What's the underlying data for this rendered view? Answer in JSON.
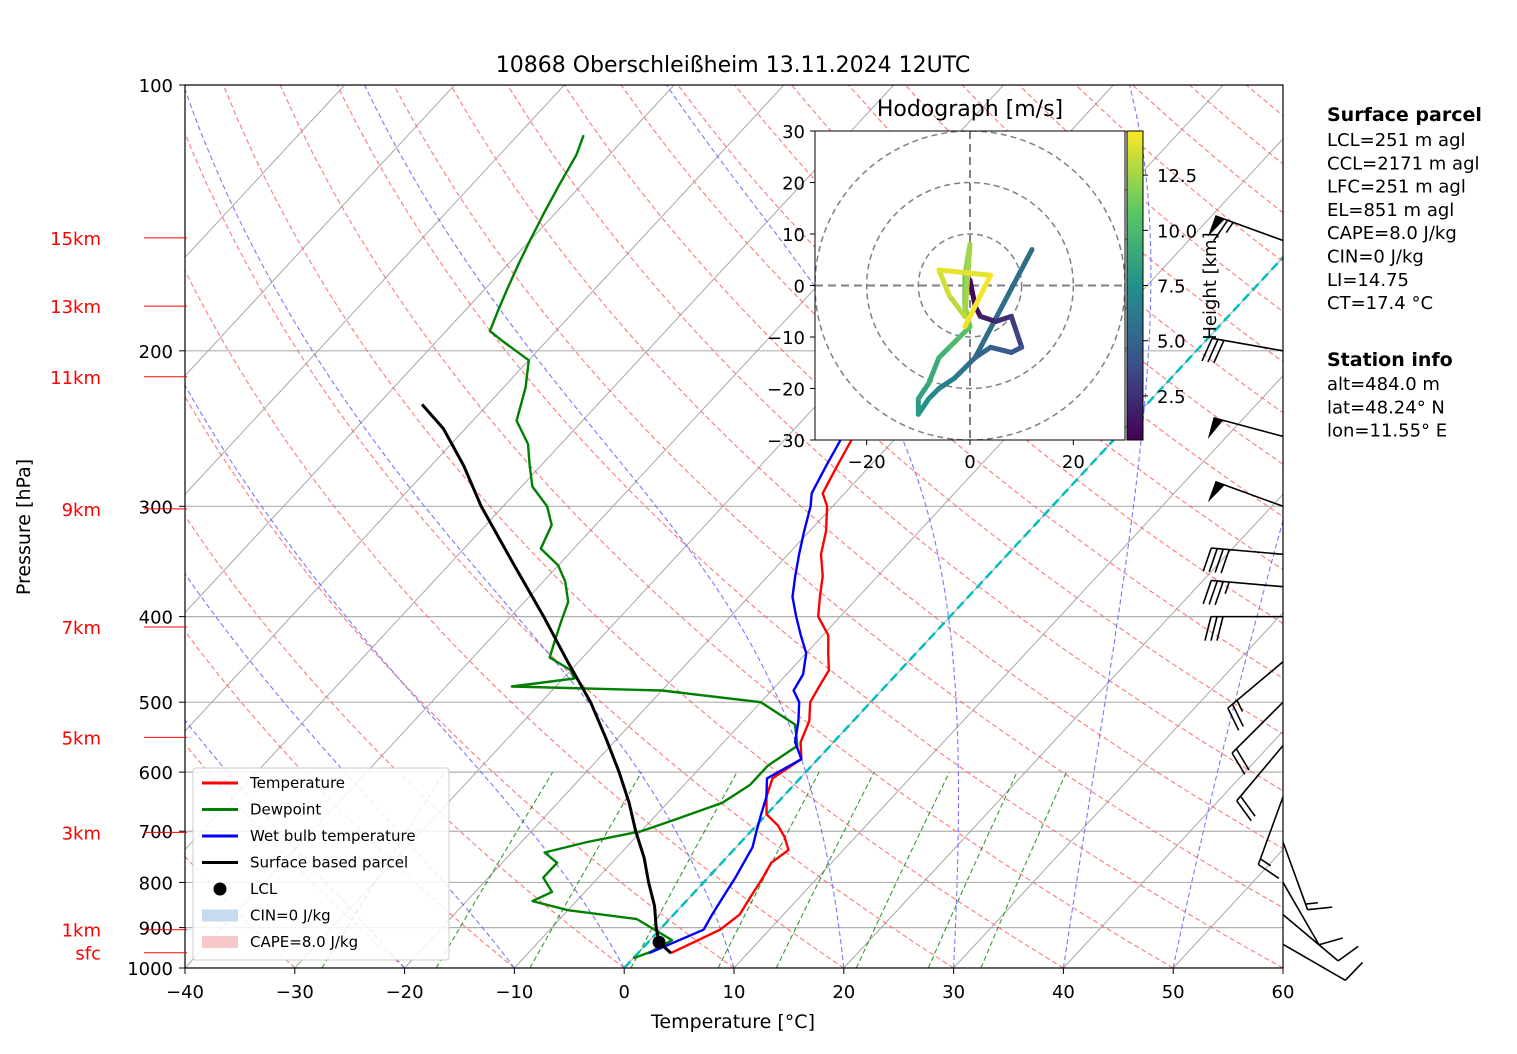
{
  "title": "10868 Oberschleißheim 13.11.2024 12UTC",
  "chart_data": {
    "type": "line",
    "title": "10868 Oberschleißheim 13.11.2024 12UTC",
    "xlabel": "Temperature [°C]",
    "ylabel": "Pressure [hPa]",
    "xlim": [
      -40,
      60
    ],
    "ylim": [
      1000,
      100
    ],
    "y_scale": "log",
    "skew": true,
    "x_ticks": [
      -40,
      -30,
      -20,
      -10,
      0,
      10,
      20,
      30,
      40,
      50,
      60
    ],
    "y_ticks": [
      100,
      200,
      300,
      400,
      500,
      600,
      700,
      800,
      900,
      1000
    ],
    "height_ticks": [
      {
        "label": "15km",
        "p": 149
      },
      {
        "label": "13km",
        "p": 178
      },
      {
        "label": "11km",
        "p": 214
      },
      {
        "label": "9km",
        "p": 302
      },
      {
        "label": "7km",
        "p": 411
      },
      {
        "label": "5km",
        "p": 548
      },
      {
        "label": "3km",
        "p": 702
      },
      {
        "label": "1km",
        "p": 905
      },
      {
        "label": "sfc",
        "p": 961
      }
    ],
    "series": [
      {
        "name": "Temperature",
        "color": "#ff0000",
        "points": [
          [
            3.0,
            962
          ],
          [
            5.5,
            905
          ],
          [
            6.0,
            870
          ],
          [
            5.5,
            830
          ],
          [
            5.0,
            790
          ],
          [
            4.5,
            760
          ],
          [
            5.0,
            735
          ],
          [
            3.5,
            710
          ],
          [
            2.0,
            690
          ],
          [
            0,
            670
          ],
          [
            -1.5,
            640
          ],
          [
            -2.5,
            610
          ],
          [
            -1.5,
            580
          ],
          [
            -3.0,
            555
          ],
          [
            -4.0,
            525
          ],
          [
            -5.5,
            500
          ],
          [
            -6.0,
            480
          ],
          [
            -6.5,
            460
          ],
          [
            -8.0,
            440
          ],
          [
            -9.5,
            420
          ],
          [
            -12.0,
            400
          ],
          [
            -13.5,
            380
          ],
          [
            -15.0,
            360
          ],
          [
            -17.0,
            340
          ],
          [
            -18.5,
            320
          ],
          [
            -20.5,
            300
          ],
          [
            -22.0,
            290
          ],
          [
            -23.0,
            270
          ],
          [
            -24.0,
            250
          ],
          [
            -25.5,
            230
          ],
          [
            -27.0,
            215
          ],
          [
            -28.5,
            205
          ],
          [
            -30.5,
            200
          ],
          [
            -31.0,
            190
          ],
          [
            -32.0,
            180
          ],
          [
            -33.0,
            170
          ],
          [
            -34.0,
            160
          ],
          [
            -35.5,
            150
          ],
          [
            -36.5,
            140
          ],
          [
            -36.0,
            130
          ],
          [
            -34.5,
            120
          ],
          [
            -33.0,
            114
          ]
        ]
      },
      {
        "name": "Dewpoint",
        "color": "#008000",
        "points": [
          [
            0,
            975
          ],
          [
            1.0,
            960
          ],
          [
            2.0,
            930
          ],
          [
            -3.0,
            880
          ],
          [
            -10.0,
            860
          ],
          [
            -14.0,
            840
          ],
          [
            -13.0,
            820
          ],
          [
            -15.0,
            790
          ],
          [
            -15.0,
            760
          ],
          [
            -17.0,
            740
          ],
          [
            -14.0,
            720
          ],
          [
            -10.0,
            700
          ],
          [
            -8.0,
            680
          ],
          [
            -5.0,
            650
          ],
          [
            -4.0,
            620
          ],
          [
            -4.0,
            590
          ],
          [
            -3.0,
            560
          ],
          [
            -5.0,
            530
          ],
          [
            -10.0,
            500
          ],
          [
            -20.0,
            485
          ],
          [
            -34.0,
            480
          ],
          [
            -29.0,
            470
          ],
          [
            -30.0,
            460
          ],
          [
            -33.0,
            445
          ],
          [
            -34.0,
            425
          ],
          [
            -35.0,
            405
          ],
          [
            -36.0,
            385
          ],
          [
            -38.0,
            365
          ],
          [
            -40.0,
            350
          ],
          [
            -43.0,
            335
          ],
          [
            -44.0,
            315
          ],
          [
            -46.0,
            300
          ],
          [
            -49.0,
            285
          ],
          [
            -51.0,
            270
          ],
          [
            -53.0,
            255
          ],
          [
            -56.0,
            240
          ],
          [
            -58.0,
            220
          ],
          [
            -60.0,
            205
          ],
          [
            -64.0,
            195
          ],
          [
            -66.0,
            190
          ],
          [
            -67.0,
            180
          ],
          [
            -68.0,
            170
          ],
          [
            -69.0,
            160
          ],
          [
            -70.0,
            150
          ],
          [
            -71.0,
            140
          ],
          [
            -72.0,
            130
          ],
          [
            -73.0,
            120
          ],
          [
            -74.0,
            114
          ]
        ]
      },
      {
        "name": "Wet bulb temperature",
        "color": "#0000ff",
        "points": [
          [
            1.0,
            962
          ],
          [
            4.0,
            905
          ],
          [
            3.5,
            870
          ],
          [
            3.0,
            830
          ],
          [
            2.5,
            790
          ],
          [
            2.0,
            760
          ],
          [
            1.5,
            730
          ],
          [
            0.5,
            700
          ],
          [
            -0.5,
            670
          ],
          [
            -1.5,
            640
          ],
          [
            -3.0,
            610
          ],
          [
            -1.5,
            580
          ],
          [
            -3.5,
            555
          ],
          [
            -5.0,
            525
          ],
          [
            -6.5,
            500
          ],
          [
            -8.0,
            485
          ],
          [
            -8.5,
            465
          ],
          [
            -10.0,
            440
          ],
          [
            -12.0,
            420
          ],
          [
            -14.0,
            400
          ],
          [
            -16.0,
            380
          ],
          [
            -17.5,
            360
          ],
          [
            -19.0,
            340
          ],
          [
            -20.5,
            320
          ],
          [
            -22.0,
            300
          ],
          [
            -23.0,
            290
          ],
          [
            -24.0,
            270
          ],
          [
            -25.0,
            250
          ],
          [
            -26.0,
            230
          ],
          [
            -27.5,
            215
          ],
          [
            -29.0,
            205
          ],
          [
            -31.0,
            200
          ],
          [
            -31.5,
            190
          ],
          [
            -32.5,
            180
          ],
          [
            -33.5,
            170
          ],
          [
            -34.5,
            160
          ],
          [
            -36.0,
            150
          ],
          [
            -37.0,
            140
          ],
          [
            -36.5,
            130
          ],
          [
            -35.0,
            120
          ],
          [
            -33.5,
            114
          ]
        ]
      },
      {
        "name": "Surface based parcel",
        "color": "#000000",
        "points": [
          [
            3.0,
            962
          ],
          [
            1.0,
            935
          ],
          [
            -0.5,
            900
          ],
          [
            -2.5,
            850
          ],
          [
            -5.0,
            800
          ],
          [
            -7.5,
            750
          ],
          [
            -10.5,
            700
          ],
          [
            -13.5,
            650
          ],
          [
            -17.0,
            600
          ],
          [
            -21.0,
            550
          ],
          [
            -25.5,
            500
          ],
          [
            -31.0,
            450
          ],
          [
            -37.0,
            400
          ],
          [
            -44.0,
            350
          ],
          [
            -52.0,
            300
          ],
          [
            -57.0,
            270
          ],
          [
            -62.0,
            245
          ],
          [
            -66.0,
            230
          ]
        ]
      },
      {
        "name": "LCL",
        "color": "#000000",
        "points": [
          [
            1.0,
            935
          ]
        ]
      }
    ],
    "cin_label": "CIN=0 J/kg",
    "cape_label": "CAPE=8.0 J/kg",
    "hodograph": {
      "title": "Hodograph [m/s]",
      "xlim": [
        -30,
        30
      ],
      "ylim": [
        -30,
        30
      ],
      "x_ticks": [
        -20,
        0,
        20
      ],
      "y_ticks": [
        -30,
        -20,
        -10,
        0,
        10,
        20,
        30
      ],
      "rings": [
        10,
        20,
        30
      ],
      "colorbar_label": "Height [km]",
      "colorbar_ticks": [
        2.5,
        5.0,
        7.5,
        10.0,
        12.5
      ],
      "colorbar_range": [
        0.5,
        14.5
      ],
      "points": [
        [
          -1,
          -2,
          0.5
        ],
        [
          0,
          1,
          0.8
        ],
        [
          1,
          -4,
          1.2
        ],
        [
          2,
          -6,
          1.8
        ],
        [
          5,
          -7,
          2.5
        ],
        [
          8,
          -6,
          3.0
        ],
        [
          9,
          -9,
          3.5
        ],
        [
          10,
          -12,
          4.0
        ],
        [
          8,
          -13,
          4.5
        ],
        [
          4,
          -12,
          5.0
        ],
        [
          1,
          -14,
          5.5
        ],
        [
          -1,
          -16,
          6.0
        ],
        [
          -3,
          -18,
          6.5
        ],
        [
          -6,
          -20,
          7.0
        ],
        [
          -8,
          -22,
          7.5
        ],
        [
          -10,
          -25,
          8.0
        ],
        [
          -10,
          -22,
          8.5
        ],
        [
          -8,
          -19,
          9.0
        ],
        [
          -6,
          -14,
          9.5
        ],
        [
          -4,
          -12,
          10.0
        ],
        [
          -2,
          -10,
          10.5
        ],
        [
          0,
          -8,
          11.0
        ],
        [
          -1,
          -4,
          11.5
        ],
        [
          -1,
          2,
          12.0
        ],
        [
          0,
          8,
          12.5
        ],
        [
          -1,
          -6,
          13.0
        ],
        [
          -4,
          -2,
          13.5
        ],
        [
          -6,
          3,
          14.0
        ],
        [
          4,
          2,
          14.3
        ],
        [
          -1,
          -8,
          14.5
        ]
      ],
      "segment": {
        "from": [
          1,
          -14
        ],
        "to": [
          12,
          7
        ],
        "height": 5.5
      }
    },
    "right_panel": {
      "surface_parcel_title": "Surface parcel",
      "surface_parcel": [
        "LCL=251 m agl",
        "CCL=2171 m agl",
        "LFC=251 m agl",
        "EL=851 m agl",
        "CAPE=8.0 J/kg",
        "CIN=0 J/kg",
        "LI=14.75",
        "CT=17.4 °C"
      ],
      "station_title": "Station info",
      "station": [
        "alt=484.0 m",
        "lat=48.24° N",
        "lon=11.55° E"
      ]
    },
    "wind_barbs": [
      {
        "p": 150,
        "dir": 290,
        "kt": 65
      },
      {
        "p": 200,
        "dir": 280,
        "kt": 30
      },
      {
        "p": 250,
        "dir": 285,
        "kt": 50
      },
      {
        "p": 300,
        "dir": 290,
        "kt": 50
      },
      {
        "p": 340,
        "dir": 275,
        "kt": 40
      },
      {
        "p": 370,
        "dir": 275,
        "kt": 35
      },
      {
        "p": 400,
        "dir": 270,
        "kt": 30
      },
      {
        "p": 450,
        "dir": 230,
        "kt": 25
      },
      {
        "p": 500,
        "dir": 225,
        "kt": 20
      },
      {
        "p": 560,
        "dir": 220,
        "kt": 20
      },
      {
        "p": 640,
        "dir": 200,
        "kt": 15
      },
      {
        "p": 720,
        "dir": 160,
        "kt": 15
      },
      {
        "p": 800,
        "dir": 150,
        "kt": 10
      },
      {
        "p": 870,
        "dir": 130,
        "kt": 10
      },
      {
        "p": 940,
        "dir": 120,
        "kt": 10
      }
    ],
    "legend": [
      "Temperature",
      "Dewpoint",
      "Wet bulb temperature",
      "Surface based parcel",
      "LCL",
      "CIN=0 J/kg",
      "CAPE=8.0 J/kg"
    ]
  }
}
